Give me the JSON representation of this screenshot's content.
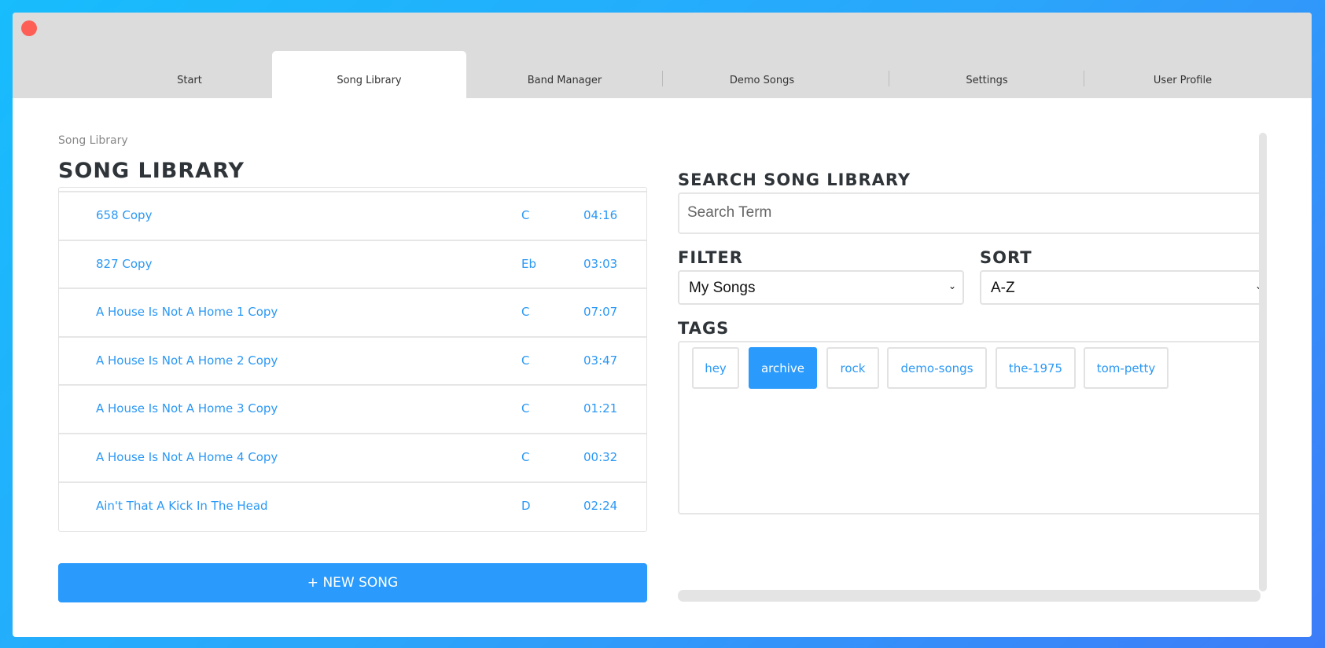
{
  "tabs": [
    "Start",
    "Song Library",
    "Band Manager",
    "Demo Songs",
    "Settings",
    "User Profile"
  ],
  "active_tab": "Song Library",
  "breadcrumb": "Song Library",
  "title": "SONG LIBRARY",
  "songs": [
    {
      "name": "658 Copy",
      "key": "C",
      "duration": "04:16"
    },
    {
      "name": "827 Copy",
      "key": "Eb",
      "duration": "03:03"
    },
    {
      "name": "A House Is Not A Home 1 Copy",
      "key": "C",
      "duration": "07:07"
    },
    {
      "name": "A House Is Not A Home 2 Copy",
      "key": "C",
      "duration": "03:47"
    },
    {
      "name": "A House Is Not A Home 3 Copy",
      "key": "C",
      "duration": "01:21"
    },
    {
      "name": "A House Is Not A Home 4 Copy",
      "key": "C",
      "duration": "00:32"
    },
    {
      "name": "Ain't That A Kick In The Head",
      "key": "D",
      "duration": "02:24"
    }
  ],
  "new_song_label": "+ NEW SONG",
  "search": {
    "label": "SEARCH SONG LIBRARY",
    "placeholder": "Search Term"
  },
  "filter": {
    "label": "FILTER",
    "value": "My Songs"
  },
  "sort": {
    "label": "SORT",
    "value": "A-Z"
  },
  "tags": {
    "label": "TAGS",
    "items": [
      "hey",
      "archive",
      "rock",
      "demo-songs",
      "the-1975",
      "tom-petty"
    ],
    "selected": "archive"
  },
  "colors": {
    "accent": "#2a9bfc",
    "close": "#fd5f57"
  }
}
